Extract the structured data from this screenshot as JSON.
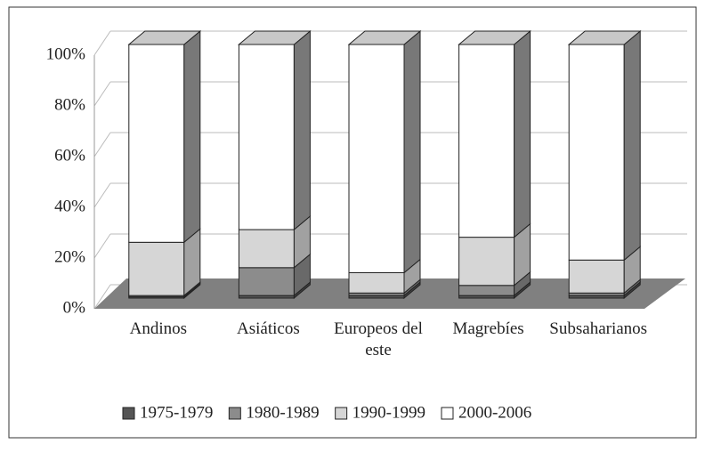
{
  "chart_data": {
    "type": "bar3d_stacked",
    "categories": [
      "Andinos",
      "Asiáticos",
      "Europeos del este",
      "Magrebíes",
      "Subsaharianos"
    ],
    "series": [
      {
        "name": "1975-1979",
        "color": "#555555",
        "values": [
          0.5,
          1,
          1,
          1,
          1
        ]
      },
      {
        "name": "1980-1989",
        "color": "#8c8c8c",
        "values": [
          0.5,
          11,
          1,
          4,
          1
        ]
      },
      {
        "name": "1990-1999",
        "color": "#d6d6d6",
        "values": [
          21,
          15,
          8,
          19,
          13
        ]
      },
      {
        "name": "2000-2006",
        "color": "#ffffff",
        "values": [
          78,
          73,
          90,
          76,
          85
        ]
      }
    ],
    "ylim": [
      0,
      100
    ],
    "yticks": [
      {
        "value": 0,
        "label": "0%"
      },
      {
        "value": 20,
        "label": "20%"
      },
      {
        "value": 40,
        "label": "40%"
      },
      {
        "value": 60,
        "label": "60%"
      },
      {
        "value": 80,
        "label": "80%"
      },
      {
        "value": 100,
        "label": "100%"
      }
    ],
    "grid": true
  }
}
